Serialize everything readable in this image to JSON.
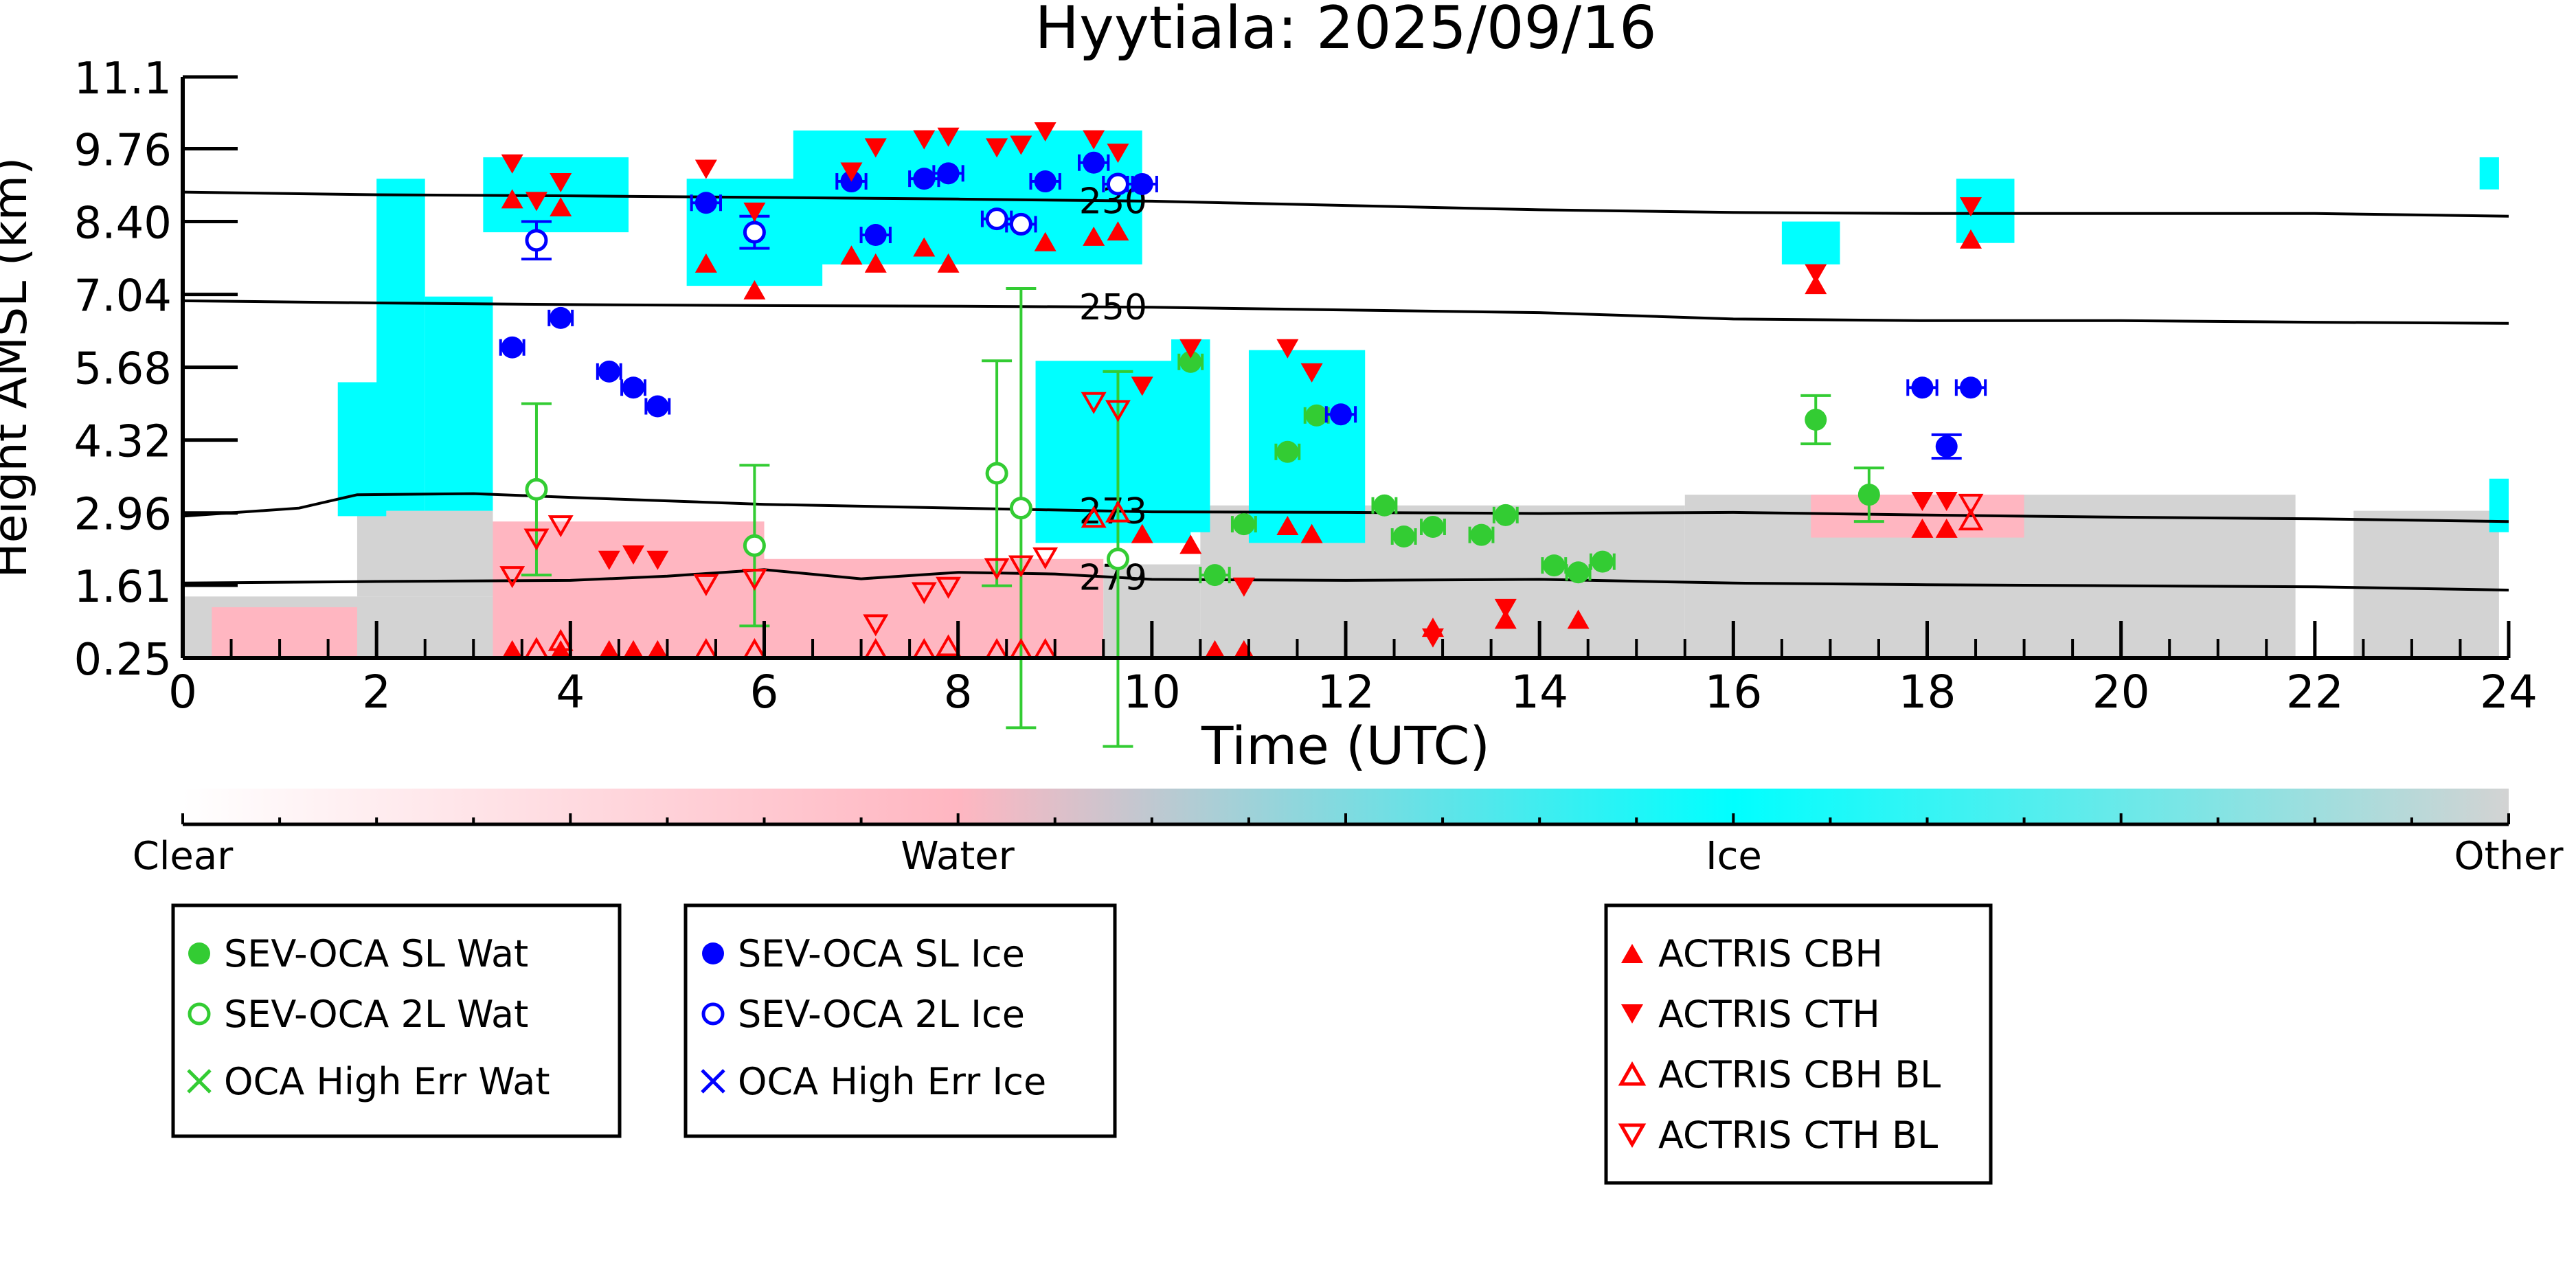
{
  "chart_data": {
    "type": "scatter",
    "title": "Hyytiala: 2025/09/16",
    "xlabel": "Time (UTC)",
    "ylabel": "Height AMSL (km)",
    "xlim": [
      0,
      24
    ],
    "ylim": [
      0.25,
      11.1
    ],
    "x_ticks": [
      0,
      2,
      4,
      6,
      8,
      10,
      12,
      14,
      16,
      18,
      20,
      22,
      24
    ],
    "x_tick_labels": [
      "0",
      "2",
      "4",
      "6",
      "8",
      "10",
      "12",
      "14",
      "16",
      "18",
      "20",
      "22",
      "24"
    ],
    "y_ticks": [
      0.25,
      1.61,
      2.96,
      4.32,
      5.68,
      7.04,
      8.4,
      9.76,
      11.1
    ],
    "y_tick_labels": [
      "0.25",
      "1.61",
      "2.96",
      "4.32",
      "5.68",
      "7.04",
      "8.40",
      "9.76",
      "11.1"
    ],
    "grid": false,
    "colors": {
      "clear": "#ffffff",
      "water": "#ffb6c1",
      "ice": "#00ffff",
      "other": "#d3d3d3",
      "sl_wat": "#33cc33",
      "sl_ice": "#0000ff",
      "actris": "#ff0000"
    },
    "colorbar": {
      "labels": [
        "Clear",
        "Water",
        "Ice",
        "Other"
      ],
      "stops": [
        0,
        0.333,
        0.667,
        1.0
      ]
    },
    "background_regions": [
      {
        "type": "other",
        "x0": 0.0,
        "x1": 3.2,
        "y0": 0.25,
        "y1": 1.4
      },
      {
        "type": "other",
        "x0": 1.8,
        "x1": 3.2,
        "y0": 1.4,
        "y1": 3.0
      },
      {
        "type": "water",
        "x0": 0.3,
        "x1": 1.8,
        "y0": 0.25,
        "y1": 1.2
      },
      {
        "type": "water",
        "x0": 3.2,
        "x1": 6.0,
        "y0": 0.25,
        "y1": 2.8
      },
      {
        "type": "water",
        "x0": 6.0,
        "x1": 9.5,
        "y0": 0.25,
        "y1": 2.1
      },
      {
        "type": "other",
        "x0": 9.5,
        "x1": 10.5,
        "y0": 0.25,
        "y1": 2.0
      },
      {
        "type": "other",
        "x0": 10.5,
        "x1": 15.5,
        "y0": 0.25,
        "y1": 3.1
      },
      {
        "type": "other",
        "x0": 15.5,
        "x1": 21.8,
        "y0": 0.25,
        "y1": 3.3
      },
      {
        "type": "water",
        "x0": 16.8,
        "x1": 19.0,
        "y0": 2.5,
        "y1": 3.3
      },
      {
        "type": "other",
        "x0": 22.4,
        "x1": 23.9,
        "y0": 0.25,
        "y1": 3.0
      },
      {
        "type": "ice",
        "x0": 1.6,
        "x1": 2.1,
        "y0": 2.9,
        "y1": 5.4
      },
      {
        "type": "ice",
        "x0": 2.0,
        "x1": 2.5,
        "y0": 3.0,
        "y1": 9.2
      },
      {
        "type": "ice",
        "x0": 2.5,
        "x1": 3.2,
        "y0": 3.0,
        "y1": 7.0
      },
      {
        "type": "ice",
        "x0": 3.1,
        "x1": 4.6,
        "y0": 8.2,
        "y1": 9.6
      },
      {
        "type": "ice",
        "x0": 5.2,
        "x1": 6.6,
        "y0": 7.2,
        "y1": 9.2
      },
      {
        "type": "ice",
        "x0": 6.3,
        "x1": 9.9,
        "y0": 7.6,
        "y1": 10.1
      },
      {
        "type": "ice",
        "x0": 8.8,
        "x1": 10.4,
        "y0": 2.4,
        "y1": 5.8
      },
      {
        "type": "ice",
        "x0": 10.2,
        "x1": 10.6,
        "y0": 2.6,
        "y1": 6.2
      },
      {
        "type": "ice",
        "x0": 11.0,
        "x1": 12.2,
        "y0": 2.4,
        "y1": 6.0
      },
      {
        "type": "ice",
        "x0": 16.5,
        "x1": 17.1,
        "y0": 7.6,
        "y1": 8.4
      },
      {
        "type": "ice",
        "x0": 18.3,
        "x1": 18.9,
        "y0": 8.0,
        "y1": 9.2
      },
      {
        "type": "ice",
        "x0": 23.7,
        "x1": 23.9,
        "y0": 9.0,
        "y1": 9.6
      },
      {
        "type": "ice",
        "x0": 23.8,
        "x1": 24.0,
        "y0": 2.6,
        "y1": 3.6
      }
    ],
    "isotherms": [
      {
        "label": "230",
        "label_x": 9.6,
        "x": [
          0,
          2,
          4,
          6,
          8,
          10,
          12,
          14,
          16,
          18,
          20,
          22,
          24
        ],
        "y": [
          8.95,
          8.9,
          8.88,
          8.85,
          8.82,
          8.78,
          8.7,
          8.62,
          8.57,
          8.55,
          8.55,
          8.55,
          8.5
        ]
      },
      {
        "label": "250",
        "label_x": 9.6,
        "x": [
          0,
          2,
          4,
          6,
          8,
          10,
          12,
          14,
          16,
          18,
          20,
          22,
          24
        ],
        "y": [
          6.92,
          6.88,
          6.85,
          6.83,
          6.82,
          6.8,
          6.75,
          6.7,
          6.58,
          6.55,
          6.55,
          6.52,
          6.5
        ]
      },
      {
        "label": "273",
        "label_x": 9.6,
        "x": [
          0,
          1.2,
          1.8,
          3,
          4,
          6,
          8,
          10,
          12,
          14,
          16,
          18,
          20,
          22,
          24
        ],
        "y": [
          2.9,
          3.05,
          3.3,
          3.32,
          3.25,
          3.12,
          3.05,
          2.98,
          2.97,
          2.95,
          2.97,
          2.92,
          2.88,
          2.85,
          2.8
        ]
      },
      {
        "label": "279",
        "label_x": 9.6,
        "x": [
          0,
          2,
          4,
          5,
          6,
          7,
          8,
          9,
          10,
          12,
          14,
          16,
          18,
          20,
          22,
          24
        ],
        "y": [
          1.65,
          1.68,
          1.7,
          1.78,
          1.9,
          1.73,
          1.85,
          1.82,
          1.72,
          1.7,
          1.72,
          1.65,
          1.62,
          1.6,
          1.58,
          1.52
        ]
      }
    ],
    "series": [
      {
        "name": "SEV-OCA SL Wat",
        "marker": "circle-filled",
        "color": "#33cc33",
        "points": [
          {
            "x": 10.4,
            "y": 5.78,
            "xerr": 0.12
          },
          {
            "x": 10.65,
            "y": 1.8,
            "xerr": 0.15
          },
          {
            "x": 10.95,
            "y": 2.75,
            "xerr": 0.12
          },
          {
            "x": 11.4,
            "y": 4.1,
            "xerr": 0.12
          },
          {
            "x": 11.7,
            "y": 4.78,
            "xerr": 0.12
          },
          {
            "x": 12.4,
            "y": 3.1,
            "xerr": 0.12
          },
          {
            "x": 12.6,
            "y": 2.52,
            "xerr": 0.12
          },
          {
            "x": 12.9,
            "y": 2.7,
            "xerr": 0.12
          },
          {
            "x": 13.4,
            "y": 2.55,
            "xerr": 0.12
          },
          {
            "x": 13.65,
            "y": 2.92,
            "xerr": 0.12
          },
          {
            "x": 14.15,
            "y": 1.98,
            "xerr": 0.12
          },
          {
            "x": 14.4,
            "y": 1.85,
            "xerr": 0.12
          },
          {
            "x": 14.65,
            "y": 2.05,
            "xerr": 0.12
          },
          {
            "x": 16.85,
            "y": 4.7,
            "yerr": 0.45
          },
          {
            "x": 17.4,
            "y": 3.3,
            "yerr": 0.5
          }
        ]
      },
      {
        "name": "SEV-OCA 2L Wat",
        "marker": "circle-open",
        "color": "#33cc33",
        "points": [
          {
            "x": 3.65,
            "y": 3.4,
            "yerr": 1.6
          },
          {
            "x": 5.9,
            "y": 2.35,
            "yerr": 1.5
          },
          {
            "x": 8.4,
            "y": 3.7,
            "yerr": 2.1
          },
          {
            "x": 8.65,
            "y": 3.05,
            "yerr": 4.1
          },
          {
            "x": 9.65,
            "y": 2.1,
            "yerr": 3.5
          }
        ]
      },
      {
        "name": "OCA High Err Wat",
        "marker": "x",
        "color": "#33cc33",
        "points": []
      },
      {
        "name": "SEV-OCA SL Ice",
        "marker": "circle-filled",
        "color": "#0000ff",
        "points": [
          {
            "x": 3.4,
            "y": 6.05,
            "xerr": 0.12
          },
          {
            "x": 3.9,
            "y": 6.6,
            "xerr": 0.12
          },
          {
            "x": 4.4,
            "y": 5.6,
            "xerr": 0.12
          },
          {
            "x": 4.65,
            "y": 5.3,
            "xerr": 0.12
          },
          {
            "x": 4.9,
            "y": 4.95,
            "xerr": 0.12
          },
          {
            "x": 5.4,
            "y": 8.75,
            "xerr": 0.15
          },
          {
            "x": 6.9,
            "y": 9.15,
            "xerr": 0.15
          },
          {
            "x": 7.15,
            "y": 8.15,
            "xerr": 0.15
          },
          {
            "x": 7.65,
            "y": 9.2,
            "xerr": 0.15
          },
          {
            "x": 7.9,
            "y": 9.3,
            "xerr": 0.15
          },
          {
            "x": 8.9,
            "y": 9.15,
            "xerr": 0.15
          },
          {
            "x": 9.4,
            "y": 9.5,
            "xerr": 0.15
          },
          {
            "x": 9.9,
            "y": 9.1,
            "xerr": 0.15
          },
          {
            "x": 11.95,
            "y": 4.8,
            "xerr": 0.15
          },
          {
            "x": 17.95,
            "y": 5.3,
            "xerr": 0.15
          },
          {
            "x": 18.2,
            "y": 4.2,
            "yerr": 0.22
          },
          {
            "x": 18.45,
            "y": 5.3,
            "xerr": 0.15
          }
        ]
      },
      {
        "name": "SEV-OCA 2L Ice",
        "marker": "circle-open",
        "color": "#0000ff",
        "points": [
          {
            "x": 3.65,
            "y": 8.05,
            "yerr": 0.35
          },
          {
            "x": 5.9,
            "y": 8.2,
            "yerr": 0.3
          },
          {
            "x": 8.4,
            "y": 8.45,
            "xerr": 0.15
          },
          {
            "x": 8.65,
            "y": 8.35,
            "xerr": 0.15
          },
          {
            "x": 9.65,
            "y": 9.1,
            "xerr": 0.15
          }
        ]
      },
      {
        "name": "OCA High Err Ice",
        "marker": "x",
        "color": "#0000ff",
        "points": []
      },
      {
        "name": "ACTRIS CBH",
        "marker": "triangle-up-filled",
        "color": "#ff0000",
        "points": [
          {
            "x": 3.4,
            "y": 8.8
          },
          {
            "x": 3.4,
            "y": 0.38
          },
          {
            "x": 3.9,
            "y": 8.65
          },
          {
            "x": 3.9,
            "y": 0.38
          },
          {
            "x": 4.4,
            "y": 0.38
          },
          {
            "x": 4.65,
            "y": 0.38
          },
          {
            "x": 4.9,
            "y": 0.38
          },
          {
            "x": 5.4,
            "y": 7.6
          },
          {
            "x": 5.9,
            "y": 7.1
          },
          {
            "x": 6.9,
            "y": 7.75
          },
          {
            "x": 7.15,
            "y": 7.6
          },
          {
            "x": 7.65,
            "y": 7.9
          },
          {
            "x": 7.9,
            "y": 7.6
          },
          {
            "x": 8.9,
            "y": 8.0
          },
          {
            "x": 9.4,
            "y": 8.1
          },
          {
            "x": 9.65,
            "y": 8.2
          },
          {
            "x": 9.9,
            "y": 2.55
          },
          {
            "x": 10.4,
            "y": 2.35
          },
          {
            "x": 10.65,
            "y": 0.38
          },
          {
            "x": 10.95,
            "y": 0.38
          },
          {
            "x": 11.4,
            "y": 2.7
          },
          {
            "x": 11.65,
            "y": 2.55
          },
          {
            "x": 12.9,
            "y": 0.8
          },
          {
            "x": 13.65,
            "y": 0.95
          },
          {
            "x": 14.4,
            "y": 0.95
          },
          {
            "x": 16.85,
            "y": 7.2
          },
          {
            "x": 17.95,
            "y": 2.65
          },
          {
            "x": 18.2,
            "y": 2.65
          },
          {
            "x": 18.45,
            "y": 8.05
          }
        ]
      },
      {
        "name": "ACTRIS CTH",
        "marker": "triangle-down-filled",
        "color": "#ff0000",
        "points": [
          {
            "x": 3.4,
            "y": 9.5
          },
          {
            "x": 3.65,
            "y": 8.8
          },
          {
            "x": 3.9,
            "y": 9.15
          },
          {
            "x": 4.4,
            "y": 2.1
          },
          {
            "x": 4.65,
            "y": 2.2
          },
          {
            "x": 4.9,
            "y": 2.1
          },
          {
            "x": 5.4,
            "y": 9.4
          },
          {
            "x": 5.9,
            "y": 8.6
          },
          {
            "x": 6.9,
            "y": 9.35
          },
          {
            "x": 7.15,
            "y": 9.8
          },
          {
            "x": 7.65,
            "y": 9.95
          },
          {
            "x": 7.9,
            "y": 10.0
          },
          {
            "x": 8.4,
            "y": 9.8
          },
          {
            "x": 8.65,
            "y": 9.85
          },
          {
            "x": 8.9,
            "y": 10.1
          },
          {
            "x": 9.4,
            "y": 9.95
          },
          {
            "x": 9.65,
            "y": 9.7
          },
          {
            "x": 9.9,
            "y": 5.35
          },
          {
            "x": 10.4,
            "y": 6.05
          },
          {
            "x": 10.95,
            "y": 1.6
          },
          {
            "x": 11.4,
            "y": 6.05
          },
          {
            "x": 11.65,
            "y": 5.6
          },
          {
            "x": 12.9,
            "y": 0.65
          },
          {
            "x": 13.65,
            "y": 1.2
          },
          {
            "x": 16.85,
            "y": 7.45
          },
          {
            "x": 17.95,
            "y": 3.2
          },
          {
            "x": 18.2,
            "y": 3.2
          },
          {
            "x": 18.45,
            "y": 8.7
          }
        ]
      },
      {
        "name": "ACTRIS CBH BL",
        "marker": "triangle-up-open",
        "color": "#ff0000",
        "points": [
          {
            "x": 3.65,
            "y": 0.4
          },
          {
            "x": 3.9,
            "y": 0.55
          },
          {
            "x": 5.4,
            "y": 0.38
          },
          {
            "x": 5.9,
            "y": 0.38
          },
          {
            "x": 7.15,
            "y": 0.38
          },
          {
            "x": 7.65,
            "y": 0.38
          },
          {
            "x": 7.9,
            "y": 0.45
          },
          {
            "x": 8.4,
            "y": 0.38
          },
          {
            "x": 8.65,
            "y": 0.38
          },
          {
            "x": 8.9,
            "y": 0.38
          },
          {
            "x": 9.4,
            "y": 2.85
          },
          {
            "x": 9.65,
            "y": 2.95
          },
          {
            "x": 18.45,
            "y": 2.8
          }
        ]
      },
      {
        "name": "ACTRIS CTH BL",
        "marker": "triangle-down-open",
        "color": "#ff0000",
        "points": [
          {
            "x": 3.4,
            "y": 1.8
          },
          {
            "x": 3.65,
            "y": 2.5
          },
          {
            "x": 3.9,
            "y": 2.75
          },
          {
            "x": 5.4,
            "y": 1.65
          },
          {
            "x": 5.9,
            "y": 1.75
          },
          {
            "x": 7.15,
            "y": 0.9
          },
          {
            "x": 7.65,
            "y": 1.5
          },
          {
            "x": 7.9,
            "y": 1.6
          },
          {
            "x": 8.4,
            "y": 1.95
          },
          {
            "x": 8.65,
            "y": 2.0
          },
          {
            "x": 8.9,
            "y": 2.15
          },
          {
            "x": 9.4,
            "y": 5.05
          },
          {
            "x": 9.65,
            "y": 4.9
          },
          {
            "x": 18.45,
            "y": 3.15
          }
        ]
      }
    ],
    "legends": [
      [
        "SEV-OCA SL Wat",
        "SEV-OCA 2L Wat",
        "OCA High Err Wat"
      ],
      [
        "SEV-OCA SL Ice",
        "SEV-OCA 2L Ice",
        "OCA High Err Ice"
      ],
      [
        "ACTRIS CBH",
        "ACTRIS CTH",
        "ACTRIS CBH BL",
        "ACTRIS CTH BL"
      ]
    ]
  }
}
